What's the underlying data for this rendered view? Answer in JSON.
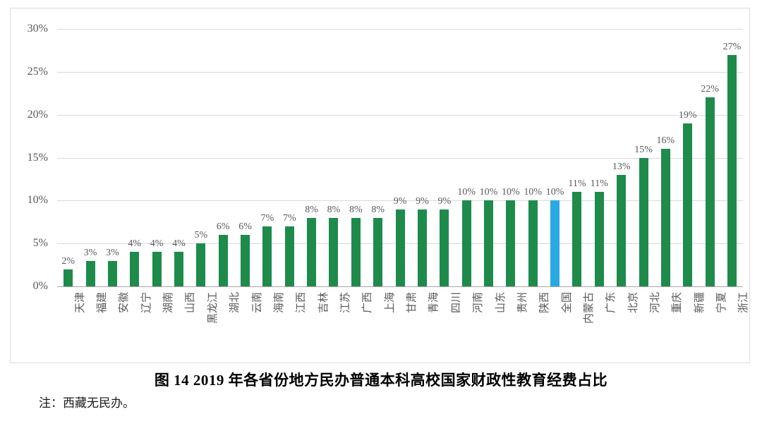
{
  "figure": {
    "title": "图 14  2019 年各省份地方民办普通本科高校国家财政性教育经费占比",
    "note": "注：西藏无民办。"
  },
  "chart_data": {
    "type": "bar",
    "title": "图 14  2019 年各省份地方民办普通本科高校国家财政性教育经费占比",
    "note": "注：西藏无民办。",
    "categories": [
      "天津",
      "福建",
      "安徽",
      "辽宁",
      "湖南",
      "山西",
      "黑龙江",
      "湖北",
      "云南",
      "海南",
      "江西",
      "吉林",
      "江苏",
      "广西",
      "上海",
      "甘肃",
      "青海",
      "四川",
      "河南",
      "山东",
      "贵州",
      "陕西",
      "全国",
      "内蒙古",
      "广东",
      "北京",
      "河北",
      "重庆",
      "新疆",
      "宁夏",
      "浙江"
    ],
    "values": [
      2,
      3,
      3,
      4,
      4,
      4,
      5,
      6,
      6,
      7,
      7,
      8,
      8,
      8,
      8,
      9,
      9,
      9,
      10,
      10,
      10,
      10,
      10,
      11,
      11,
      13,
      15,
      16,
      19,
      22,
      27
    ],
    "labels": [
      "2%",
      "3%",
      "3%",
      "4%",
      "4%",
      "4%",
      "5%",
      "6%",
      "6%",
      "7%",
      "7%",
      "8%",
      "8%",
      "8%",
      "8%",
      "9%",
      "9%",
      "9%",
      "10%",
      "10%",
      "10%",
      "10%",
      "10%",
      "11%",
      "11%",
      "13%",
      "15%",
      "16%",
      "19%",
      "22%",
      "27%"
    ],
    "highlight_index": 22,
    "highlight_category": "全国",
    "bar_color": "#1e8b4b",
    "highlight_color": "#29a9e1",
    "label_color": "#595959",
    "grid": true,
    "legend": "none",
    "ylim": [
      0,
      30
    ],
    "y_ticks": [
      {
        "label": "30%",
        "value": 30
      },
      {
        "label": "25%",
        "value": 25
      },
      {
        "label": "20%",
        "value": 20
      },
      {
        "label": "15%",
        "value": 15
      },
      {
        "label": "10%",
        "value": 10
      },
      {
        "label": "5%",
        "value": 5
      },
      {
        "label": "0%",
        "value": 0
      }
    ]
  }
}
